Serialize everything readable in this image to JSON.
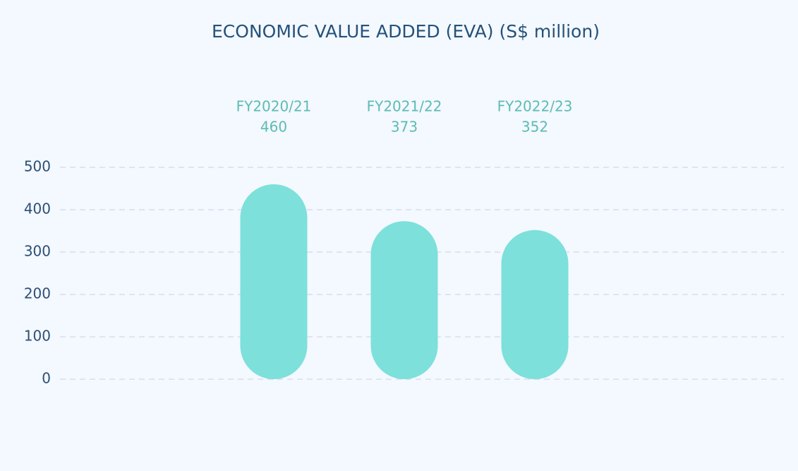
{
  "chart_data": {
    "type": "bar",
    "title": "ECONOMIC VALUE ADDED (EVA) (S$ million)",
    "categories": [
      "FY2020/21",
      "FY2021/22",
      "FY2022/23"
    ],
    "values": [
      460,
      373,
      352
    ],
    "color": "#7de0db",
    "ylim": [
      0,
      500
    ],
    "yticks": [
      0,
      100,
      200,
      300,
      400,
      500
    ],
    "grid": true
  }
}
